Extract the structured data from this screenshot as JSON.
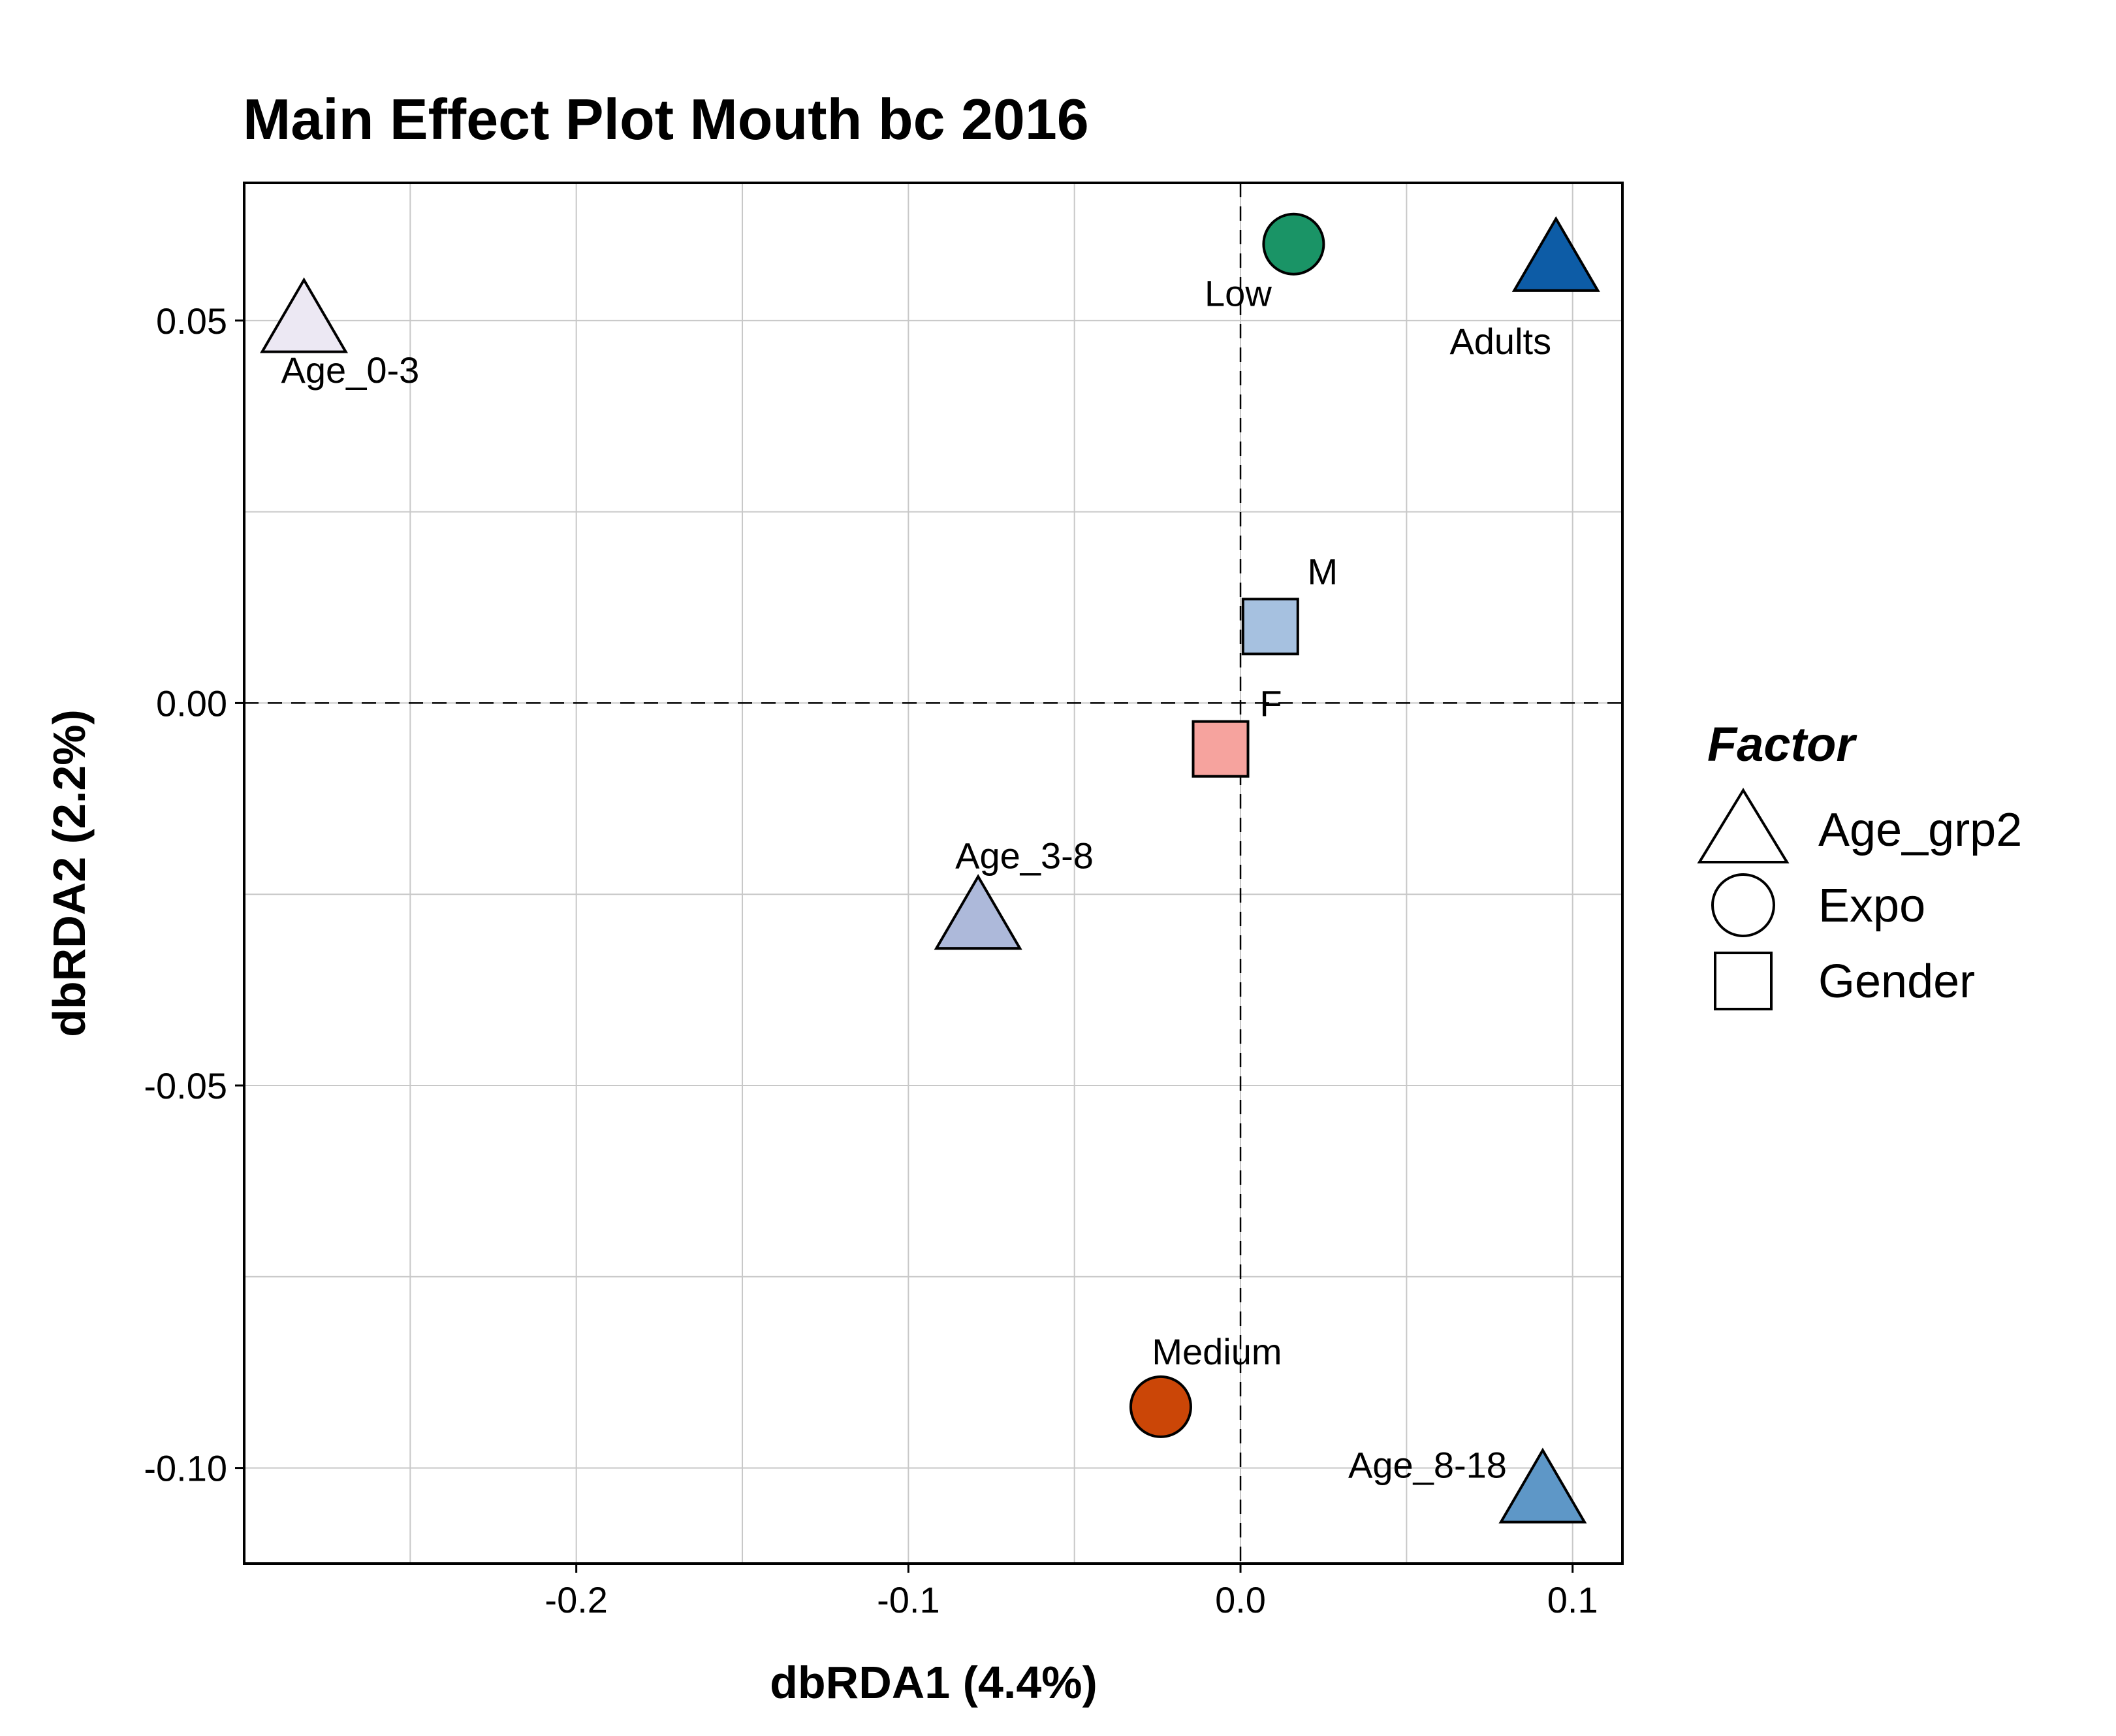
{
  "chart_data": {
    "type": "scatter",
    "title": "Main Effect Plot Mouth bc 2016",
    "xlabel": "dbRDA1 (4.4%)",
    "ylabel": "dbRDA2 (2.2%)",
    "xlim": [
      -0.3,
      0.115
    ],
    "ylim": [
      -0.1125,
      0.068
    ],
    "x_ticks": [
      -0.2,
      -0.1,
      0.0,
      0.1
    ],
    "x_tick_labels": [
      "-0.2",
      "-0.1",
      "0.0",
      "0.1"
    ],
    "y_ticks": [
      -0.1,
      -0.05,
      0.0,
      0.05
    ],
    "y_tick_labels": [
      "-0.10",
      "-0.05",
      "0.00",
      "0.05"
    ],
    "x_minor_grid": [
      -0.25,
      -0.15,
      -0.05,
      0.05
    ],
    "y_minor_grid": [
      -0.075,
      -0.025,
      0.025
    ],
    "grid": true,
    "reference_lines": {
      "x": 0.0,
      "y": 0.0,
      "style": "dashed"
    },
    "legend": {
      "title": "Factor",
      "position": "right",
      "entries": [
        {
          "label": "Age_grp2",
          "shape": "triangle"
        },
        {
          "label": "Expo",
          "shape": "circle"
        },
        {
          "label": "Gender",
          "shape": "square"
        }
      ]
    },
    "points": [
      {
        "label": "Age_0-3",
        "factor": "Age_grp2",
        "shape": "triangle",
        "x": -0.282,
        "y": 0.05,
        "color": "#ECE8F3",
        "label_pos": "below"
      },
      {
        "label": "Age_3-8",
        "factor": "Age_grp2",
        "shape": "triangle",
        "x": -0.079,
        "y": -0.028,
        "color": "#ADB9DA",
        "label_pos": "above"
      },
      {
        "label": "Age_8-18",
        "factor": "Age_grp2",
        "shape": "triangle",
        "x": 0.091,
        "y": -0.103,
        "color": "#5E97C7",
        "label_pos": "left"
      },
      {
        "label": "Adults",
        "factor": "Age_grp2",
        "shape": "triangle",
        "x": 0.095,
        "y": 0.058,
        "color": "#0D5CA6",
        "label_pos": "below-left"
      },
      {
        "label": "Low",
        "factor": "Expo",
        "shape": "circle",
        "x": 0.016,
        "y": 0.06,
        "color": "#1A9466",
        "label_pos": "below-left"
      },
      {
        "label": "Medium",
        "factor": "Expo",
        "shape": "circle",
        "x": -0.024,
        "y": -0.092,
        "color": "#CB4607",
        "label_pos": "above-right"
      },
      {
        "label": "M",
        "factor": "Gender",
        "shape": "square",
        "x": 0.009,
        "y": 0.01,
        "color": "#A6C1E0",
        "label_pos": "above-right"
      },
      {
        "label": "F",
        "factor": "Gender",
        "shape": "square",
        "x": -0.006,
        "y": -0.006,
        "color": "#F6A39E",
        "label_pos": "above-right"
      }
    ]
  }
}
